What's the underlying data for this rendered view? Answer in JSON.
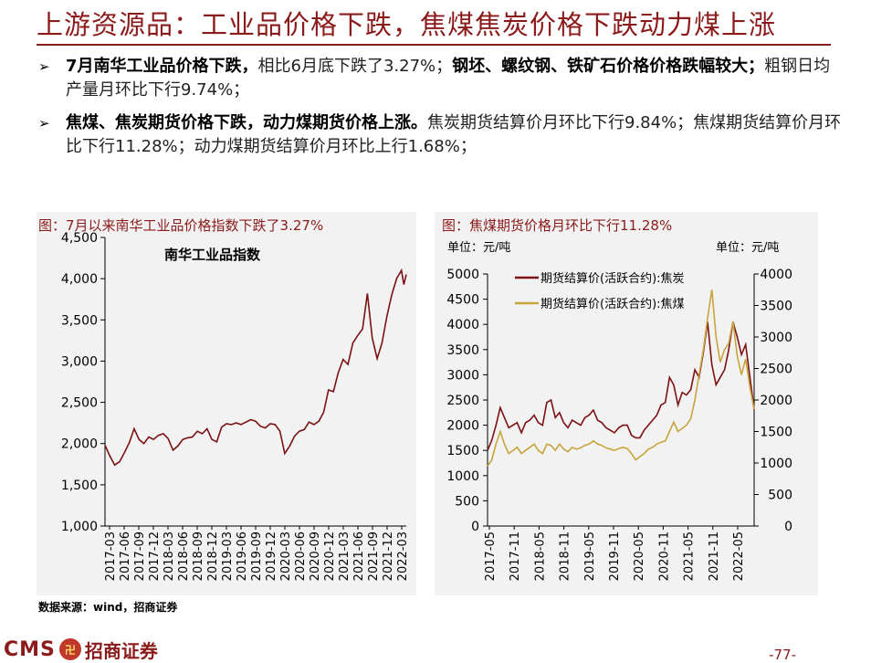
{
  "page": {
    "title": "上游资源品：工业品价格下跌，焦煤焦炭价格下跌动力煤上涨",
    "bullets": [
      {
        "bold": "7月南华工业品价格下跌，",
        "plain1": "相比6月底下跌了3.27%；",
        "bold2": "钢坯、螺纹钢、铁矿石价格价格跌幅较大；",
        "plain2": "粗钢日均产量月环比下行9.74%；"
      },
      {
        "bold": "焦煤、焦炭期货价格下跌，动力煤期货价格上涨。",
        "plain1": "焦炭期货结算价月环比下行9.84%；焦煤期货结算价月环比下行11.28%；动力煤期货结算价月环比上行1.68%；"
      }
    ],
    "source": "数据来源：wind，招商证券",
    "logo_text": "CMS",
    "logo_cn": "招商证券",
    "page_number": "-77-",
    "colors": {
      "brand": "#8b1a1a",
      "coke": "#7b1113",
      "coking_coal": "#c8a43c",
      "panel_bg": "#f2f2f2"
    }
  },
  "chart_data": [
    {
      "type": "line",
      "fig_title": "图：7月以来南华工业品价格指数下跌了3.27%",
      "title": "南华工业品指数",
      "x_ticks": [
        "2017-03",
        "2017-06",
        "2017-09",
        "2017-12",
        "2018-03",
        "2018-06",
        "2018-09",
        "2018-12",
        "2019-03",
        "2019-06",
        "2019-09",
        "2019-12",
        "2020-03",
        "2020-06",
        "2020-09",
        "2020-12",
        "2021-03",
        "2021-06",
        "2021-09",
        "2021-12",
        "2022-03"
      ],
      "y_ticks": [
        "1,000",
        "1,500",
        "2,000",
        "2,500",
        "3,000",
        "3,500",
        "4,000",
        "4,500"
      ],
      "ylim": [
        1000,
        4500
      ],
      "xlim": [
        0,
        62
      ],
      "series": [
        {
          "name": "南华工业品指数",
          "color": "#7b1113",
          "x": [
            0,
            1,
            2,
            3,
            4,
            5,
            6,
            7,
            8,
            9,
            10,
            11,
            12,
            13,
            14,
            15,
            16,
            17,
            18,
            19,
            20,
            21,
            22,
            23,
            24,
            25,
            26,
            27,
            28,
            29,
            30,
            31,
            32,
            33,
            34,
            35,
            36,
            37,
            38,
            39,
            40,
            41,
            42,
            43,
            44,
            45,
            46,
            47,
            48,
            49,
            50,
            51,
            52,
            53,
            54,
            55,
            56,
            57,
            58,
            59,
            60,
            61,
            61.5,
            62
          ],
          "values": [
            1980,
            1850,
            1740,
            1780,
            1890,
            2010,
            2180,
            2050,
            2000,
            2080,
            2050,
            2100,
            2120,
            2060,
            1920,
            1970,
            2050,
            2070,
            2080,
            2150,
            2120,
            2180,
            2050,
            2020,
            2200,
            2240,
            2230,
            2250,
            2230,
            2260,
            2290,
            2270,
            2210,
            2190,
            2240,
            2230,
            2150,
            1880,
            1970,
            2090,
            2150,
            2170,
            2260,
            2230,
            2270,
            2380,
            2650,
            2630,
            2860,
            3020,
            2960,
            3220,
            3310,
            3390,
            3820,
            3280,
            3030,
            3220,
            3540,
            3800,
            4000,
            4100,
            3930,
            4050
          ]
        }
      ]
    },
    {
      "type": "line",
      "fig_title": "图：焦煤期货价格月环比下行11.28%",
      "unit_left": "单位：元/吨",
      "unit_right": "单位：元/吨",
      "x_ticks": [
        "2017-05",
        "2017-11",
        "2018-05",
        "2018-11",
        "2019-05",
        "2019-11",
        "2020-05",
        "2020-11",
        "2021-05",
        "2021-11",
        "2022-05"
      ],
      "y_left_ticks": [
        "0",
        "500",
        "1000",
        "1500",
        "2000",
        "2500",
        "3000",
        "3500",
        "4000",
        "4500",
        "5000"
      ],
      "y_right_ticks": [
        "0",
        "500",
        "1000",
        "1500",
        "2000",
        "2500",
        "3000",
        "3500",
        "4000"
      ],
      "ylim_left": [
        0,
        5000
      ],
      "ylim_right": [
        0,
        4000
      ],
      "xlim": [
        0,
        63
      ],
      "series": [
        {
          "name": "期货结算价(活跃合约):焦炭",
          "axis": "left",
          "color": "#7b1113",
          "x": [
            0,
            1,
            2,
            3,
            4,
            5,
            6,
            7,
            8,
            9,
            10,
            11,
            12,
            13,
            14,
            15,
            16,
            17,
            18,
            19,
            20,
            21,
            22,
            23,
            24,
            25,
            26,
            27,
            28,
            29,
            30,
            31,
            32,
            33,
            34,
            35,
            36,
            37,
            38,
            39,
            40,
            41,
            42,
            43,
            44,
            45,
            46,
            47,
            48,
            49,
            50,
            51,
            52,
            53,
            54,
            55,
            56,
            57,
            58,
            59,
            60,
            61,
            62,
            63
          ],
          "values": [
            1500,
            1700,
            2000,
            2350,
            2150,
            1950,
            2000,
            2050,
            1850,
            2050,
            2100,
            2200,
            2050,
            2000,
            2450,
            2500,
            2150,
            2250,
            2050,
            1950,
            2100,
            2050,
            2000,
            2150,
            2200,
            2300,
            2100,
            2050,
            1950,
            1900,
            1850,
            1950,
            2000,
            2000,
            1800,
            1750,
            1750,
            1900,
            2000,
            2100,
            2200,
            2400,
            2450,
            2950,
            2800,
            2400,
            2650,
            2600,
            2700,
            3100,
            2950,
            3450,
            4050,
            3200,
            2800,
            2950,
            3100,
            3500,
            4050,
            3750,
            3400,
            3600,
            2950,
            2300
          ]
        },
        {
          "name": "期货结算价(活跃合约):焦煤",
          "axis": "right",
          "color": "#c8a43c",
          "x": [
            0,
            1,
            2,
            3,
            4,
            5,
            6,
            7,
            8,
            9,
            10,
            11,
            12,
            13,
            14,
            15,
            16,
            17,
            18,
            19,
            20,
            21,
            22,
            23,
            24,
            25,
            26,
            27,
            28,
            29,
            30,
            31,
            32,
            33,
            34,
            35,
            36,
            37,
            38,
            39,
            40,
            41,
            42,
            43,
            44,
            45,
            46,
            47,
            48,
            49,
            50,
            51,
            52,
            53,
            54,
            55,
            56,
            57,
            58,
            59,
            60,
            61,
            62,
            63
          ],
          "values": [
            950,
            1050,
            1300,
            1500,
            1300,
            1150,
            1200,
            1250,
            1150,
            1200,
            1250,
            1300,
            1200,
            1150,
            1300,
            1280,
            1200,
            1300,
            1220,
            1180,
            1250,
            1220,
            1240,
            1280,
            1300,
            1350,
            1300,
            1280,
            1240,
            1220,
            1200,
            1230,
            1250,
            1230,
            1150,
            1050,
            1100,
            1150,
            1220,
            1250,
            1300,
            1330,
            1350,
            1500,
            1650,
            1500,
            1550,
            1600,
            1700,
            2000,
            2400,
            2800,
            3300,
            3750,
            3000,
            2600,
            2800,
            2900,
            3250,
            2700,
            2400,
            2650,
            2200,
            1850
          ]
        }
      ]
    }
  ]
}
